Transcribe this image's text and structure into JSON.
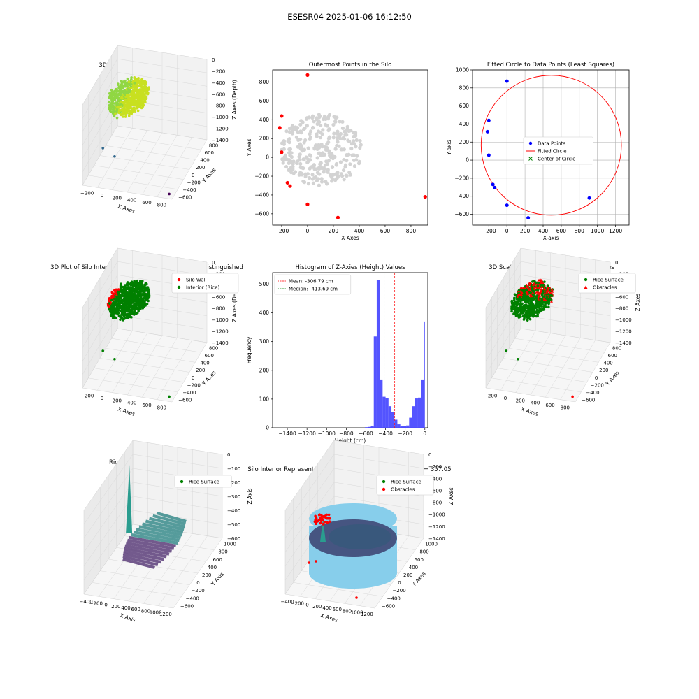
{
  "figure": {
    "title": "ESESR04 2025-01-06 16:12:50"
  },
  "colors": {
    "blue": "#0000ff",
    "red": "#ff0000",
    "green": "#008000",
    "gray": "#d3d3d3",
    "hist": "#4b4bff",
    "cyan": "#87ceeb",
    "purple": "#5c3e7a",
    "teal": "#3a8c8c"
  },
  "chart_data": [
    {
      "type": "scatter",
      "projection": "3d",
      "title": "3D Plot of Silo Interior(row data)",
      "xlabel": "X Axes",
      "ylabel": "Y Axes",
      "zlabel": "Z Axes (Depth)",
      "xticks": [
        "−200",
        "0",
        "200",
        "400",
        "600",
        "800"
      ],
      "yticks": [
        "800",
        "600",
        "400",
        "200",
        "0",
        "−200",
        "−400",
        "−600"
      ],
      "zticks": [
        "0",
        "−200",
        "−400",
        "−600",
        "−800",
        "−1000",
        "−1200",
        "−1400"
      ],
      "colormap": "viridis",
      "outlier_points": [
        {
          "x": 910,
          "y": -420,
          "z": -1500
        }
      ]
    },
    {
      "type": "scatter",
      "title": "Outermost Points in the Silo",
      "xlabel": "X Axes",
      "ylabel": "Y Axes",
      "xlim": [
        -270,
        930
      ],
      "ylim": [
        -720,
        930
      ],
      "xticks": [
        -200,
        0,
        200,
        400,
        600,
        800
      ],
      "yticks": [
        -600,
        -400,
        -200,
        0,
        200,
        400,
        600,
        800
      ],
      "series": [
        {
          "color": "red",
          "points": [
            [
              0,
              875
            ],
            [
              -200,
              440
            ],
            [
              -215,
              315
            ],
            [
              -200,
              55
            ],
            [
              -155,
              -270
            ],
            [
              -135,
              -305
            ],
            [
              0,
              -500
            ],
            [
              235,
              -640
            ],
            [
              910,
              -420
            ]
          ]
        }
      ],
      "interior_cloud": {
        "color": "lightgray",
        "x_range": [
          -200,
          430
        ],
        "y_range": [
          -300,
          480
        ]
      }
    },
    {
      "type": "scatter",
      "title": "Fitted Circle to Data Points (Least Squares)",
      "xlabel": "X-axis",
      "ylabel": "Y-axis",
      "xlim": [
        -380,
        1350
      ],
      "ylim": [
        -720,
        1000
      ],
      "xticks": [
        -200,
        0,
        200,
        400,
        600,
        800,
        1000,
        1200
      ],
      "yticks": [
        -600,
        -400,
        -200,
        0,
        200,
        400,
        600,
        800,
        1000
      ],
      "grid": true,
      "legend_position": "center",
      "series": [
        {
          "name": "Data Points",
          "color": "blue",
          "points": [
            [
              0,
              875
            ],
            [
              -200,
              440
            ],
            [
              -215,
              315
            ],
            [
              -200,
              55
            ],
            [
              -155,
              -270
            ],
            [
              -135,
              -305
            ],
            [
              0,
              -500
            ],
            [
              235,
              -640
            ],
            [
              910,
              -420
            ]
          ]
        },
        {
          "name": "Fitted Circle",
          "color": "red",
          "center": [
            490,
            165
          ],
          "radius": 775
        },
        {
          "name": "Center of Circle",
          "color": "green",
          "marker": "x"
        }
      ]
    },
    {
      "type": "scatter",
      "projection": "3d",
      "title": "3D Plot of Silo Interior with Wall and Interior Points Distinguished",
      "xlabel": "X Axes",
      "ylabel": "Y Axes",
      "zlabel": "Z Axes (Depth)",
      "xticks": [
        "−200",
        "0",
        "200",
        "400",
        "600",
        "800"
      ],
      "yticks": [
        "800",
        "600",
        "400",
        "200",
        "0",
        "−200",
        "−400",
        "−600"
      ],
      "zticks": [
        "0",
        "−200",
        "−400",
        "−600",
        "−800",
        "−1000",
        "−1200",
        "−1400"
      ],
      "legend": [
        "Silo Wall",
        "Interior (Rice)"
      ]
    },
    {
      "type": "bar",
      "title": "Histogram of Z-Axies (Height) Values",
      "xlabel": "Height (cm)",
      "ylabel": "Frequency",
      "xlim": [
        -1550,
        30
      ],
      "ylim": [
        0,
        540
      ],
      "xticks": [
        -1400,
        -1200,
        -1000,
        -800,
        -600,
        -400,
        -200,
        0
      ],
      "yticks": [
        0,
        100,
        200,
        300,
        400,
        500
      ],
      "bins": [
        {
          "x0": -610,
          "x1": -580,
          "v": 2
        },
        {
          "x0": -580,
          "x1": -550,
          "v": 3
        },
        {
          "x0": -550,
          "x1": -520,
          "v": 5
        },
        {
          "x0": -520,
          "x1": -490,
          "v": 318
        },
        {
          "x0": -490,
          "x1": -460,
          "v": 515
        },
        {
          "x0": -460,
          "x1": -430,
          "v": 168
        },
        {
          "x0": -430,
          "x1": -400,
          "v": 108
        },
        {
          "x0": -400,
          "x1": -370,
          "v": 103
        },
        {
          "x0": -370,
          "x1": -340,
          "v": 75
        },
        {
          "x0": -340,
          "x1": -310,
          "v": 55
        },
        {
          "x0": -310,
          "x1": -280,
          "v": 28
        },
        {
          "x0": -280,
          "x1": -250,
          "v": 12
        },
        {
          "x0": -250,
          "x1": -220,
          "v": 5
        },
        {
          "x0": -220,
          "x1": -190,
          "v": 5
        },
        {
          "x0": -190,
          "x1": -160,
          "v": 8
        },
        {
          "x0": -160,
          "x1": -130,
          "v": 35
        },
        {
          "x0": -130,
          "x1": -100,
          "v": 75
        },
        {
          "x0": -100,
          "x1": -70,
          "v": 102
        },
        {
          "x0": -70,
          "x1": -40,
          "v": 105
        },
        {
          "x0": -40,
          "x1": -10,
          "v": 168
        },
        {
          "x0": -10,
          "x1": 0,
          "v": 370
        }
      ],
      "series": [
        {
          "name": "Mean: -306.79 cm",
          "value": -306.79,
          "color": "red",
          "style": "dashed"
        },
        {
          "name": "Median: -413.69 cm",
          "value": -413.69,
          "color": "green",
          "style": "dashed"
        }
      ]
    },
    {
      "type": "scatter",
      "projection": "3d",
      "title": "3D Scatter Plot: Rice Surface vs Obstacles",
      "xlabel": "X Axes",
      "ylabel": "Y Axes",
      "zlabel": "Z Axes",
      "xticks": [
        "−200",
        "0",
        "200",
        "400",
        "600",
        "800"
      ],
      "yticks": [
        "800",
        "600",
        "400",
        "200",
        "0",
        "−200",
        "−400",
        "−600"
      ],
      "zticks": [
        "0",
        "−200",
        "−400",
        "−600",
        "−800",
        "−1000",
        "−1200",
        "−1400"
      ],
      "legend": [
        "Rice Surface",
        "Obstacles"
      ]
    },
    {
      "type": "surface",
      "projection": "3d",
      "title": "Rice Surface Interpolated",
      "subtitle": "depth = 357.05",
      "xlabel": "X Axis",
      "ylabel": "Y Axis",
      "zlabel": "Z Axis",
      "xticks": [
        "−400",
        "−200",
        "0",
        "200",
        "400",
        "600",
        "800",
        "1000",
        "1200"
      ],
      "yticks": [
        "1000",
        "800",
        "600",
        "400",
        "200",
        "0",
        "−200",
        "−400",
        "−600"
      ],
      "zticks": [
        "0",
        "−100",
        "−200",
        "−300",
        "−400",
        "−500",
        "−600"
      ],
      "legend": [
        "Rice Surface"
      ]
    },
    {
      "type": "surface",
      "projection": "3d",
      "title": "Silo Interior Representation using weighted average depth = 357.05",
      "xlabel": "X Axes",
      "ylabel": "Y Axes",
      "zlabel": "Z Axes",
      "xticks": [
        "−400",
        "−200",
        "0",
        "200",
        "400",
        "600",
        "800",
        "1000",
        "1200"
      ],
      "yticks": [
        "1000",
        "800",
        "600",
        "400",
        "200",
        "0",
        "−200",
        "−400",
        "−600"
      ],
      "zticks": [
        "0",
        "−200",
        "−400",
        "−600",
        "−800",
        "−1000",
        "−1200",
        "−1400"
      ],
      "legend": [
        "Rice Surface",
        "Obstacles"
      ]
    }
  ]
}
